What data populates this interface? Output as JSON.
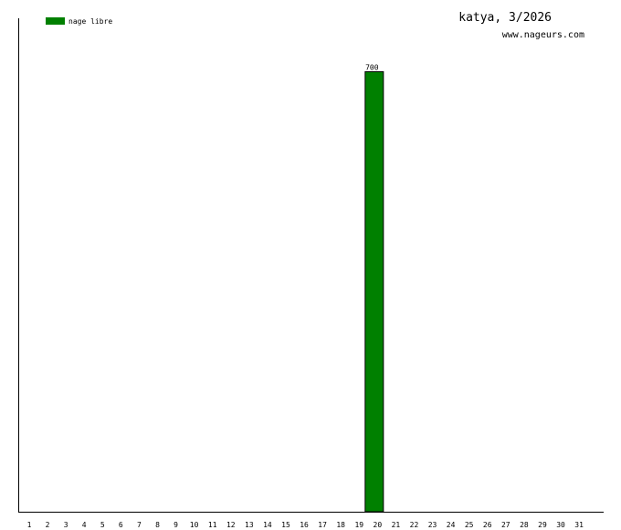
{
  "chart_data": {
    "type": "bar",
    "title": "katya, 3/2026",
    "subtitle": "www.nageurs.com",
    "xlabel": "",
    "ylabel": "",
    "categories": [
      "1",
      "2",
      "3",
      "4",
      "5",
      "6",
      "7",
      "8",
      "9",
      "10",
      "11",
      "12",
      "13",
      "14",
      "15",
      "16",
      "17",
      "18",
      "19",
      "20",
      "21",
      "22",
      "23",
      "24",
      "25",
      "26",
      "27",
      "28",
      "29",
      "30",
      "31"
    ],
    "series": [
      {
        "name": "nage libre",
        "color": "#008000",
        "values": [
          0,
          0,
          0,
          0,
          0,
          0,
          0,
          0,
          0,
          0,
          0,
          0,
          0,
          0,
          0,
          0,
          0,
          0,
          0,
          700,
          0,
          0,
          0,
          0,
          0,
          0,
          0,
          0,
          0,
          0,
          0
        ]
      }
    ],
    "data_labels": true,
    "ylim": [
      0,
      785
    ],
    "grid": false,
    "legend_placement": "top-left"
  }
}
